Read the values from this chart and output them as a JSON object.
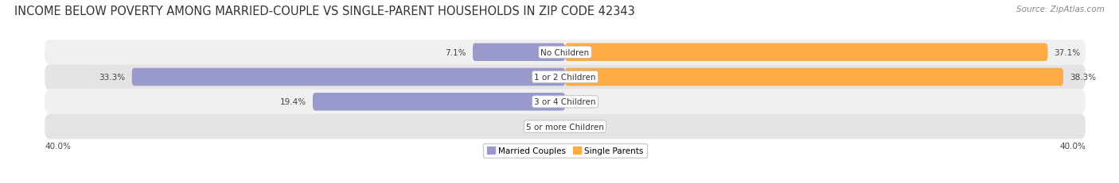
{
  "title": "INCOME BELOW POVERTY AMONG MARRIED-COUPLE VS SINGLE-PARENT HOUSEHOLDS IN ZIP CODE 42343",
  "source": "Source: ZipAtlas.com",
  "categories": [
    "No Children",
    "1 or 2 Children",
    "3 or 4 Children",
    "5 or more Children"
  ],
  "married_values": [
    7.1,
    33.3,
    19.4,
    0.0
  ],
  "single_values": [
    37.1,
    38.3,
    0.0,
    0.0
  ],
  "married_color": "#9999CC",
  "single_color": "#FFAA44",
  "row_bg_even": "#F0F0F0",
  "row_bg_odd": "#E4E4E4",
  "max_val": 40.0,
  "legend_labels": [
    "Married Couples",
    "Single Parents"
  ],
  "axis_label_left": "40.0%",
  "axis_label_right": "40.0%",
  "title_fontsize": 10.5,
  "source_fontsize": 7.5,
  "bar_label_fontsize": 7.5,
  "category_fontsize": 7.5
}
